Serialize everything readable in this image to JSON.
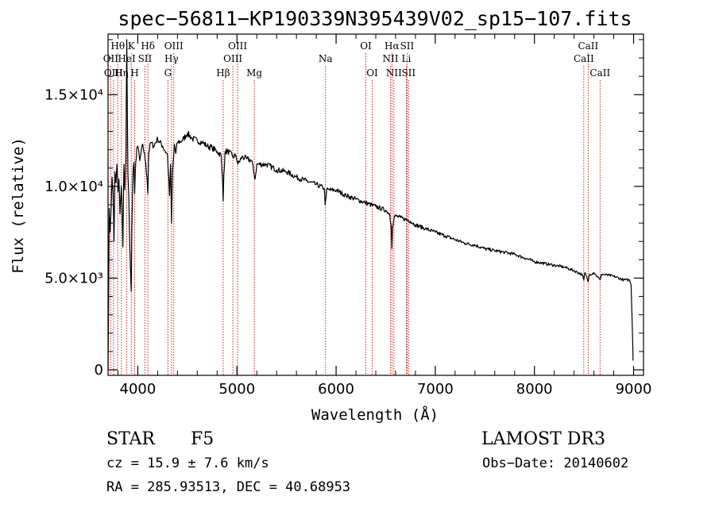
{
  "chart_data": {
    "type": "line",
    "title": "spec−56811−KP190339N395439V02_sp15−107.fits",
    "xlabel": "Wavelength (Å)",
    "ylabel": "Flux (relative)",
    "xlim": [
      3700,
      9100
    ],
    "ylim": [
      -300,
      18300
    ],
    "x_ticks": [
      {
        "value": 4000,
        "label": "4000"
      },
      {
        "value": 5000,
        "label": "5000"
      },
      {
        "value": 6000,
        "label": "6000"
      },
      {
        "value": 7000,
        "label": "7000"
      },
      {
        "value": 8000,
        "label": "8000"
      },
      {
        "value": 9000,
        "label": "9000"
      }
    ],
    "y_ticks": [
      {
        "value": 0,
        "label": "0"
      },
      {
        "value": 5000,
        "label": "5.0×10³"
      },
      {
        "value": 10000,
        "label": "1.0×10⁴"
      },
      {
        "value": 15000,
        "label": "1.5×10⁴"
      }
    ],
    "series": [
      {
        "name": "spectrum",
        "x": [
          3700,
          3705,
          3712,
          3720,
          3730,
          3740,
          3750,
          3760,
          3770,
          3780,
          3790,
          3800,
          3810,
          3820,
          3835,
          3850,
          3860,
          3870,
          3880,
          3889,
          3895,
          3900,
          3910,
          3920,
          3930,
          3934,
          3940,
          3950,
          3960,
          3968,
          3975,
          3990,
          4000,
          4020,
          4050,
          4080,
          4095,
          4101,
          4110,
          4130,
          4160,
          4200,
          4250,
          4300,
          4320,
          4330,
          4340,
          4350,
          4370,
          4383,
          4400,
          4450,
          4500,
          4550,
          4600,
          4650,
          4700,
          4750,
          4800,
          4840,
          4855,
          4861,
          4867,
          4880,
          4920,
          4957,
          4990,
          5010,
          5050,
          5100,
          5150,
          5168,
          5183,
          5200,
          5300,
          5400,
          5500,
          5600,
          5700,
          5800,
          5880,
          5889,
          5895,
          5905,
          5950,
          6000,
          6100,
          6200,
          6300,
          6400,
          6500,
          6540,
          6555,
          6563,
          6570,
          6590,
          6650,
          6700,
          6750,
          6800,
          6900,
          7000,
          7100,
          7200,
          7300,
          7400,
          7500,
          7600,
          7700,
          7800,
          7900,
          8000,
          8100,
          8200,
          8300,
          8400,
          8480,
          8498,
          8510,
          8542,
          8555,
          8600,
          8662,
          8675,
          8700,
          8800,
          8900,
          8960,
          8975,
          8985,
          8995
        ],
        "values": [
          0,
          3200,
          8800,
          7500,
          8600,
          10500,
          9800,
          7000,
          10800,
          10200,
          11200,
          9700,
          10400,
          8500,
          10000,
          6700,
          11200,
          9800,
          11600,
          18000,
          14000,
          10700,
          9300,
          6500,
          4800,
          4300,
          7800,
          10500,
          11300,
          9600,
          10800,
          12100,
          12200,
          11400,
          12300,
          11300,
          10300,
          9600,
          11800,
          12400,
          12200,
          12600,
          12200,
          11700,
          9500,
          11200,
          8000,
          10800,
          12300,
          11800,
          12400,
          12500,
          12900,
          12600,
          12500,
          12400,
          12200,
          12100,
          11900,
          11700,
          10300,
          9200,
          10600,
          11900,
          11900,
          11600,
          11700,
          11200,
          11600,
          11500,
          11400,
          10800,
          10400,
          11200,
          11200,
          10900,
          10800,
          10500,
          10300,
          10100,
          9900,
          9000,
          9300,
          9800,
          9800,
          9800,
          9500,
          9300,
          9100,
          8900,
          8700,
          8500,
          7900,
          6600,
          7800,
          8400,
          8300,
          8200,
          8100,
          7900,
          7700,
          7500,
          7300,
          7100,
          6900,
          6800,
          6600,
          6500,
          6400,
          6300,
          6100,
          5900,
          5800,
          5700,
          5600,
          5400,
          5200,
          4900,
          5300,
          4800,
          5200,
          5300,
          4900,
          5200,
          5200,
          5100,
          4900,
          4900,
          4600,
          2800,
          500
        ]
      }
    ],
    "lines": [
      {
        "label": "Hθ",
        "wl": 3798,
        "row": 1
      },
      {
        "label": "OII",
        "wl": 3727,
        "row": 2
      },
      {
        "label": "OIII",
        "wl": 3755,
        "row": 3
      },
      {
        "label": "Hη",
        "wl": 3835,
        "row": 3
      },
      {
        "label": "HeI",
        "wl": 3889,
        "row": 2
      },
      {
        "label": "K",
        "wl": 3934,
        "row": 1
      },
      {
        "label": "H",
        "wl": 3968,
        "row": 3
      },
      {
        "label": "SII",
        "wl": 4072,
        "row": 2
      },
      {
        "label": "Hδ",
        "wl": 4102,
        "row": 1
      },
      {
        "label": "G",
        "wl": 4304,
        "row": 3
      },
      {
        "label": "Hγ",
        "wl": 4340,
        "row": 2
      },
      {
        "label": "OIII",
        "wl": 4363,
        "row": 1
      },
      {
        "label": "Hβ",
        "wl": 4861,
        "row": 3
      },
      {
        "label": "OIII",
        "wl": 4959,
        "row": 2
      },
      {
        "label": "OIII",
        "wl": 5007,
        "row": 1
      },
      {
        "label": "Mg",
        "wl": 5175,
        "row": 3
      },
      {
        "label": "Na",
        "wl": 5893,
        "row": 2
      },
      {
        "label": "OI",
        "wl": 6300,
        "row": 1
      },
      {
        "label": "OI",
        "wl": 6364,
        "row": 3
      },
      {
        "label": "NII",
        "wl": 6548,
        "row": 2
      },
      {
        "label": "Hα",
        "wl": 6563,
        "row": 1
      },
      {
        "label": "NII",
        "wl": 6583,
        "row": 3
      },
      {
        "label": "Li",
        "wl": 6708,
        "row": 2
      },
      {
        "label": "SII",
        "wl": 6716,
        "row": 1
      },
      {
        "label": "SII",
        "wl": 6731,
        "row": 3
      },
      {
        "label": "CaII",
        "wl": 8498,
        "row": 2
      },
      {
        "label": "CaII",
        "wl": 8542,
        "row": 1
      },
      {
        "label": "CaII",
        "wl": 8662,
        "row": 3
      }
    ]
  },
  "info": {
    "object_class": "STAR",
    "subclass": "F5",
    "survey": "LAMOST DR3",
    "redshift": "cz = 15.9 ± 7.6 km/s",
    "obs_date": "Obs−Date: 20140602",
    "coords": "RA = 285.93513, DEC =  40.68953"
  },
  "colors": {
    "spectrum": "#000000",
    "line_marker": "#cc0000",
    "background": "#ffffff"
  }
}
